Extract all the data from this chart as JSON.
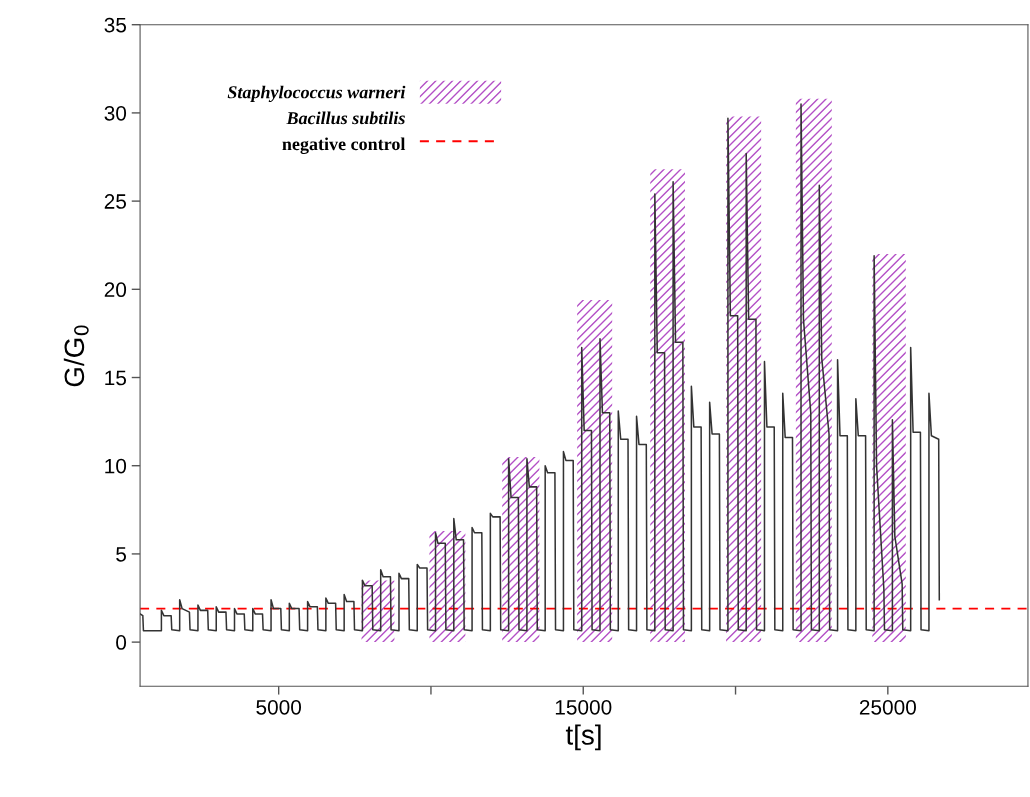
{
  "chart_data": {
    "type": "line",
    "xlabel": "t[s]",
    "ylabel": "G/G$_{0}$",
    "xlim": [
      450,
      29600
    ],
    "ylim": [
      -2.5,
      35
    ],
    "xticks": [
      5000,
      {
        "value": 10000,
        "label": null
      },
      15000,
      {
        "value": 20000,
        "label": null
      },
      25000
    ],
    "yticks": [
      0,
      5,
      10,
      15,
      20,
      25,
      30,
      35
    ],
    "grid": false,
    "legend": "top left",
    "marker": "none",
    "annotations": [
      "Bacillus subtilis"
    ],
    "ref_lines": [
      {
        "axis": "y",
        "value": 1.9,
        "label": "negative control",
        "color": "#ff0000",
        "line_style": "dashed"
      }
    ],
    "series": [
      {
        "name": "Staphylococcus warneri",
        "type": "area",
        "color": "#b34fc6",
        "x": [
          7720,
          8800,
          9400,
          9950,
          11130,
          11700,
          12340,
          13560,
          14200,
          14800,
          15950,
          16600,
          17200,
          18340,
          19000,
          19690,
          20840,
          21400,
          21980,
          23160,
          23800,
          24490,
          25590
        ],
        "values": [
          3.5,
          3.5,
          null,
          6.3,
          6.3,
          null,
          10.5,
          10.5,
          null,
          19.4,
          19.4,
          null,
          26.8,
          26.8,
          null,
          29.8,
          29.8,
          null,
          30.8,
          30.8,
          null,
          22.0,
          22.0
        ]
      },
      {
        "color": "#333333",
        "x": [
          450,
          540,
          560,
          1150,
          1150,
          1230,
          1470,
          1490,
          1750,
          1750,
          1830,
          2070,
          2090,
          2350,
          2350,
          2430,
          2670,
          2690,
          2950,
          2950,
          3030,
          3270,
          3290,
          3550,
          3550,
          3630,
          3870,
          3890,
          4150,
          4150,
          4230,
          4470,
          4490,
          4750,
          4750,
          4830,
          5070,
          5090,
          5350,
          5350,
          5430,
          5670,
          5690,
          5950,
          5950,
          6030,
          6270,
          6290,
          6550,
          6550,
          6630,
          6870,
          6890,
          7150,
          7150,
          7230,
          7470,
          7490,
          7750,
          7750,
          7830,
          8070,
          8090,
          8350,
          8350,
          8430,
          8670,
          8690,
          8950,
          8950,
          9030,
          9270,
          9290,
          9550,
          9550,
          9630,
          9870,
          9890,
          10150,
          10150,
          10230,
          10470,
          10490,
          10750,
          10750,
          10830,
          11070,
          11090,
          11350,
          11350,
          11430,
          11670,
          11690,
          11950,
          11950,
          12030,
          12270,
          12290,
          12550,
          12550,
          12630,
          12870,
          12890,
          13150,
          13150,
          13230,
          13470,
          13490,
          13750,
          13750,
          13830,
          14070,
          14090,
          14350,
          14350,
          14430,
          14670,
          14690,
          14950,
          14950,
          15030,
          15270,
          15290,
          15550,
          15550,
          15630,
          15870,
          15890,
          16150,
          16150,
          16230,
          16470,
          16490,
          16750,
          16750,
          16830,
          17070,
          17090,
          17350,
          17350,
          17430,
          17670,
          17690,
          17950,
          17950,
          18030,
          18270,
          18290,
          18550,
          18550,
          18630,
          18870,
          18890,
          19150,
          19150,
          19230,
          19470,
          19490,
          19750,
          19750,
          19830,
          20070,
          20090,
          20350,
          20350,
          20430,
          20670,
          20690,
          20950,
          20950,
          21030,
          21270,
          21290,
          21550,
          21550,
          21630,
          21870,
          21890,
          22150,
          22150,
          22230,
          22470,
          22490,
          22750,
          22750,
          22830,
          23070,
          23090,
          23350,
          23350,
          23430,
          23670,
          23690,
          23950,
          23950,
          24030,
          24270,
          24290,
          24550,
          24550,
          24630,
          24870,
          24890,
          25150,
          25150,
          25230,
          25470,
          25490,
          25750,
          25750,
          25830,
          26070,
          26090,
          26350,
          26350,
          26430,
          26670,
          26690
        ],
        "values": [
          1.6,
          1.5,
          0.65,
          0.65,
          1.8,
          1.5,
          1.5,
          0.7,
          0.65,
          2.4,
          1.9,
          1.7,
          0.7,
          0.65,
          2.1,
          1.8,
          1.8,
          0.7,
          0.65,
          2.0,
          1.7,
          1.7,
          0.7,
          0.65,
          1.9,
          1.6,
          1.6,
          0.7,
          0.65,
          1.9,
          1.6,
          1.6,
          0.7,
          0.65,
          2.4,
          1.9,
          1.9,
          0.7,
          0.65,
          2.2,
          1.9,
          1.9,
          0.7,
          0.65,
          2.3,
          2.0,
          2.0,
          0.7,
          0.65,
          2.5,
          2.2,
          2.2,
          0.7,
          0.65,
          2.7,
          2.3,
          2.3,
          0.7,
          0.65,
          3.5,
          3.2,
          3.2,
          0.7,
          0.65,
          4.1,
          3.7,
          3.7,
          0.7,
          0.65,
          3.9,
          3.6,
          3.6,
          0.7,
          0.65,
          4.4,
          4.2,
          4.2,
          0.7,
          0.65,
          6.2,
          5.6,
          5.6,
          0.7,
          0.65,
          7.0,
          5.8,
          5.8,
          0.7,
          0.65,
          6.5,
          6.2,
          6.2,
          0.7,
          0.65,
          7.3,
          7.1,
          7.1,
          0.7,
          0.65,
          10.4,
          8.2,
          8.2,
          0.7,
          0.65,
          10.4,
          8.8,
          8.8,
          0.7,
          0.65,
          10.0,
          9.6,
          9.6,
          0.7,
          0.65,
          10.8,
          10.3,
          10.3,
          0.7,
          0.65,
          16.7,
          12.0,
          12.0,
          0.7,
          0.65,
          17.2,
          13.0,
          13.0,
          0.7,
          0.65,
          13.1,
          11.5,
          11.5,
          0.7,
          0.65,
          12.8,
          11.2,
          11.2,
          0.7,
          0.65,
          25.4,
          16.4,
          16.4,
          0.7,
          0.65,
          26.1,
          17.0,
          17.0,
          0.7,
          0.65,
          14.5,
          12.2,
          12.2,
          0.7,
          0.65,
          13.6,
          11.8,
          11.8,
          0.7,
          0.65,
          29.7,
          18.5,
          18.5,
          0.7,
          0.65,
          27.7,
          18.3,
          18.3,
          0.7,
          0.65,
          15.9,
          12.2,
          12.2,
          0.7,
          0.65,
          14.1,
          11.6,
          11.6,
          0.7,
          0.65,
          30.5,
          18.3,
          13.0,
          0.7,
          0.65,
          25.9,
          16.1,
          11.8,
          0.7,
          0.65,
          16.0,
          11.7,
          11.7,
          0.7,
          0.65,
          13.8,
          11.7,
          11.7,
          0.7,
          0.65,
          21.9,
          10.0,
          3.0,
          0.7,
          0.65,
          12.6,
          6.0,
          3.3,
          0.7,
          0.65,
          16.7,
          11.9,
          11.9,
          0.7,
          0.65,
          14.1,
          11.7,
          11.5,
          2.4
        ]
      }
    ]
  }
}
